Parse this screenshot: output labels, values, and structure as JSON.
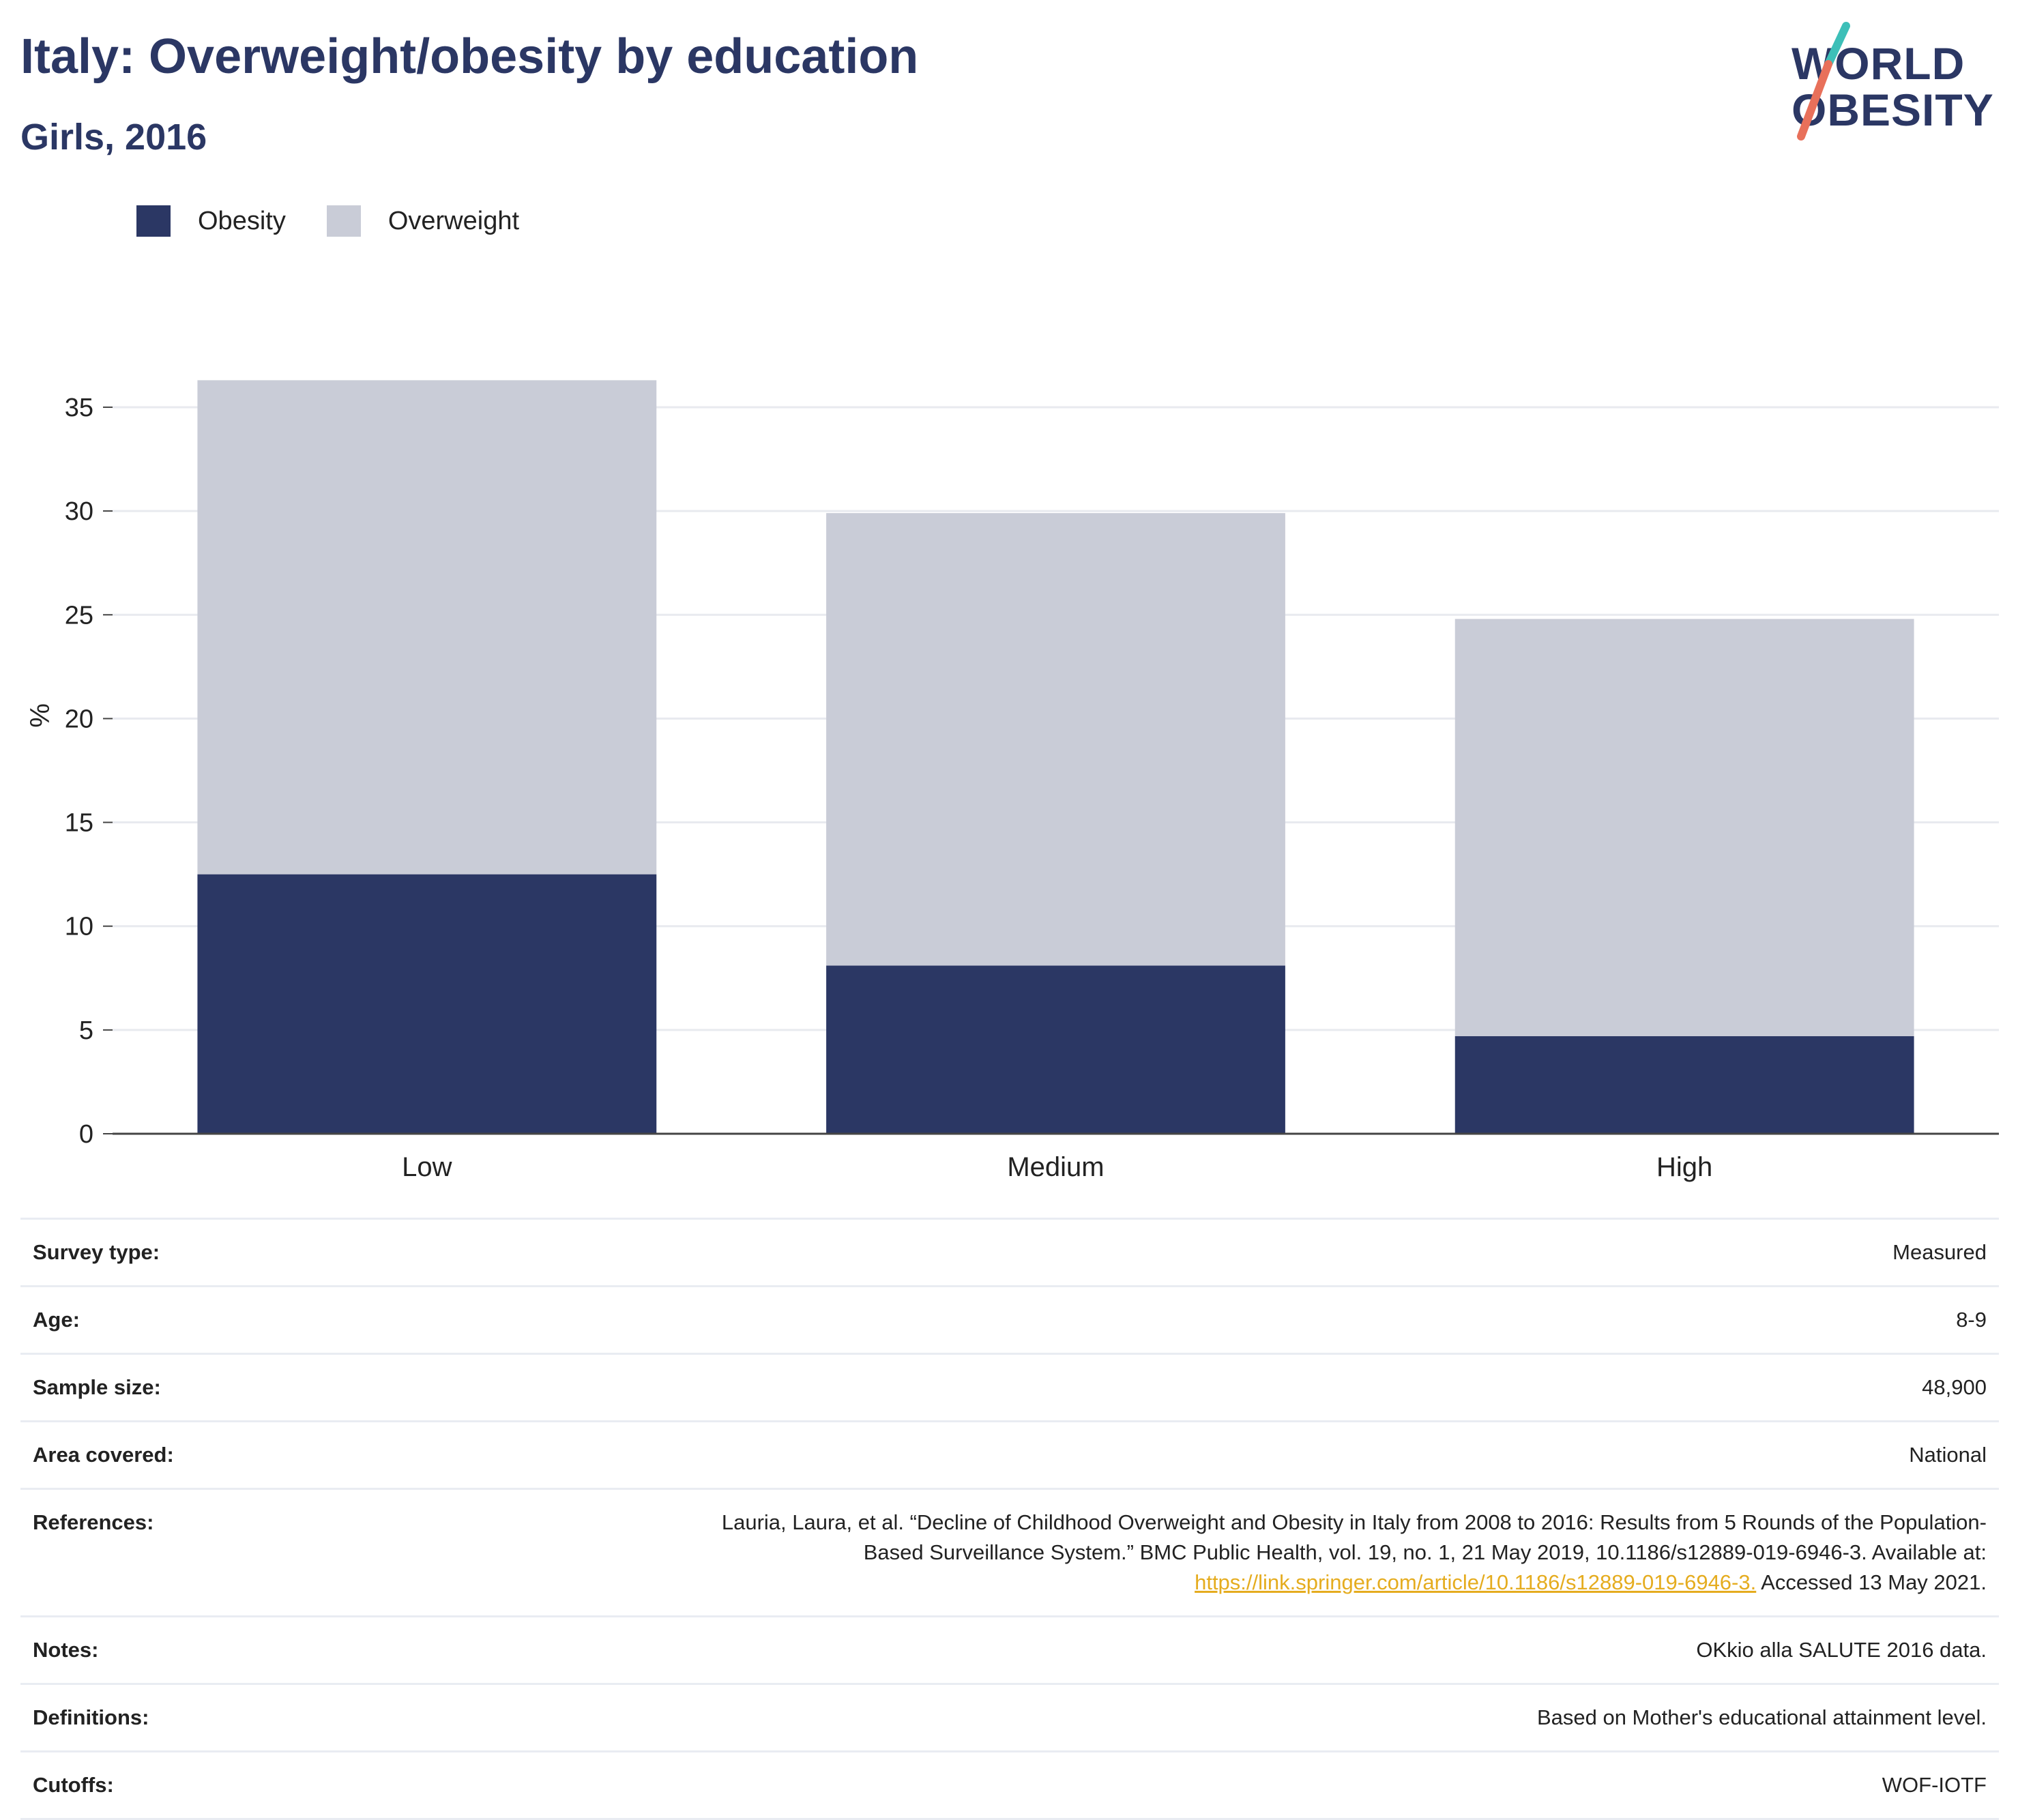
{
  "header": {
    "title": "Italy: Overweight/obesity by education",
    "subtitle": "Girls, 2016"
  },
  "logo": {
    "line1": "WORLD",
    "line2": "OBESITY",
    "accent_colors": [
      "#3dbfb8",
      "#e8705a"
    ]
  },
  "chart_data": {
    "type": "bar",
    "stacked": true,
    "categories": [
      "Low",
      "Medium",
      "High"
    ],
    "series": [
      {
        "name": "Obesity",
        "color": "#2b3764",
        "values": [
          12.5,
          8.1,
          4.7
        ]
      },
      {
        "name": "Overweight",
        "color": "#c9ccd7",
        "values": [
          23.8,
          21.8,
          20.1
        ]
      }
    ],
    "ylabel": "%",
    "ylim": [
      0,
      36.3
    ],
    "yticks": [
      0,
      5,
      10,
      15,
      20,
      25,
      30,
      35
    ],
    "grid": true,
    "legend_position": "top-left"
  },
  "info": {
    "rows": [
      {
        "label": "Survey type:",
        "value": "Measured"
      },
      {
        "label": "Age:",
        "value": "8-9"
      },
      {
        "label": "Sample size:",
        "value": "48,900"
      },
      {
        "label": "Area covered:",
        "value": "National"
      },
      {
        "label": "References:",
        "value_line1": "Lauria, Laura, et al. “Decline of Childhood Overweight and Obesity in Italy from 2008 to 2016: Results from 5 Rounds of the Population-",
        "value_line2": "Based Surveillance System.” BMC Public Health, vol. 19, no. 1, 21 May 2019, 10.1186/s12889-019-6946-3. Available at:",
        "link": "https://link.springer.com/article/10.1186/s12889-019-6946-3.",
        "value_after_link": " Accessed 13 May 2021."
      },
      {
        "label": "Notes:",
        "value": "OKkio alla SALUTE 2016 data."
      },
      {
        "label": "Definitions:",
        "value": "Based on Mother's educational attainment level."
      },
      {
        "label": "Cutoffs:",
        "value": "WOF-IOTF"
      }
    ]
  }
}
